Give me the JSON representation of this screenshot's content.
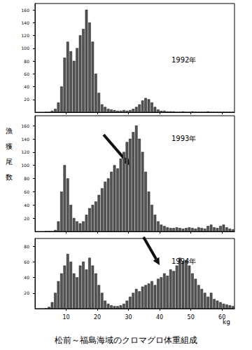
{
  "title": "松前～福島海域のクロマグロ体重組成",
  "chart_data": [
    {
      "type": "histogram",
      "title": "1992年",
      "bins": [
        3,
        4,
        5,
        6,
        7,
        8,
        9,
        10,
        11,
        12,
        13,
        14,
        15,
        16,
        17,
        18,
        19,
        20,
        21,
        22,
        23,
        24,
        25,
        26,
        27,
        28,
        29,
        30,
        31,
        32,
        33,
        34,
        35,
        36,
        37,
        38,
        39,
        40,
        41,
        42,
        43,
        44,
        45,
        46,
        47,
        48,
        49,
        50,
        51,
        52,
        53,
        54,
        55,
        56,
        57,
        58,
        59,
        60,
        61,
        62,
        63,
        64
      ],
      "values": [
        0,
        0,
        2,
        5,
        15,
        40,
        85,
        110,
        95,
        80,
        100,
        120,
        130,
        160,
        140,
        110,
        60,
        30,
        12,
        8,
        5,
        4,
        3,
        2,
        2,
        3,
        2,
        3,
        5,
        8,
        12,
        18,
        22,
        20,
        15,
        8,
        4,
        2,
        2,
        1,
        1,
        1,
        0,
        0,
        1,
        0,
        0,
        1,
        0,
        0,
        0,
        0,
        1,
        0,
        0,
        0,
        0,
        0,
        0,
        0,
        0
      ],
      "color": "#555555",
      "xlim": [
        0,
        64
      ],
      "xticks": [
        10,
        20,
        30,
        40,
        50,
        60
      ],
      "ylim": [
        0,
        170
      ],
      "yticks": [
        20,
        40,
        60,
        80,
        100,
        120,
        140,
        160
      ],
      "grid": false,
      "tick_labels": "y"
    },
    {
      "type": "histogram",
      "title": "1993年",
      "ylabel": "漁獲尾数",
      "bins": [
        3,
        4,
        5,
        6,
        7,
        8,
        9,
        10,
        11,
        12,
        13,
        14,
        15,
        16,
        17,
        18,
        19,
        20,
        21,
        22,
        23,
        24,
        25,
        26,
        27,
        28,
        29,
        30,
        31,
        32,
        33,
        34,
        35,
        36,
        37,
        38,
        39,
        40,
        41,
        42,
        43,
        44,
        45,
        46,
        47,
        48,
        49,
        50,
        51,
        52,
        53,
        54,
        55,
        56,
        57,
        58,
        59,
        60,
        61,
        62,
        63,
        64
      ],
      "values": [
        0,
        0,
        0,
        2,
        15,
        60,
        100,
        80,
        40,
        20,
        15,
        12,
        15,
        25,
        35,
        40,
        45,
        55,
        65,
        75,
        80,
        90,
        100,
        95,
        110,
        120,
        135,
        140,
        150,
        160,
        140,
        120,
        90,
        60,
        40,
        25,
        15,
        10,
        8,
        6,
        5,
        5,
        6,
        5,
        4,
        5,
        6,
        5,
        4,
        6,
        5,
        4,
        8,
        10,
        6,
        5,
        8,
        10,
        6,
        4,
        3
      ],
      "color": "#555555",
      "xlim": [
        0,
        64
      ],
      "xticks": [
        10,
        20,
        30,
        40,
        50,
        60
      ],
      "ylim": [
        0,
        175
      ],
      "yticks": [
        20,
        40,
        60,
        80,
        100,
        120,
        140,
        160
      ],
      "grid": false,
      "tick_labels": "y"
    },
    {
      "type": "histogram",
      "title": "1994年",
      "xlabel": "kg",
      "bins": [
        3,
        4,
        5,
        6,
        7,
        8,
        9,
        10,
        11,
        12,
        13,
        14,
        15,
        16,
        17,
        18,
        19,
        20,
        21,
        22,
        23,
        24,
        25,
        26,
        27,
        28,
        29,
        30,
        31,
        32,
        33,
        34,
        35,
        36,
        37,
        38,
        39,
        40,
        41,
        42,
        43,
        44,
        45,
        46,
        47,
        48,
        49,
        50,
        51,
        52,
        53,
        54,
        55,
        56,
        57,
        58,
        59,
        60,
        61,
        62,
        63,
        64
      ],
      "values": [
        0,
        2,
        8,
        20,
        35,
        45,
        55,
        70,
        60,
        45,
        40,
        55,
        60,
        50,
        65,
        55,
        45,
        30,
        20,
        10,
        6,
        4,
        3,
        3,
        4,
        6,
        10,
        15,
        20,
        25,
        22,
        28,
        30,
        32,
        35,
        30,
        38,
        40,
        45,
        42,
        50,
        48,
        55,
        65,
        60,
        62,
        55,
        45,
        38,
        30,
        25,
        20,
        15,
        20,
        12,
        10,
        8,
        6,
        5,
        4,
        3
      ],
      "color": "#555555",
      "xlim": [
        0,
        64
      ],
      "xticks": [
        10,
        20,
        30,
        40,
        50,
        60
      ],
      "ylim": [
        0,
        90
      ],
      "yticks": [
        20,
        40,
        60,
        80
      ],
      "grid": false
    }
  ]
}
